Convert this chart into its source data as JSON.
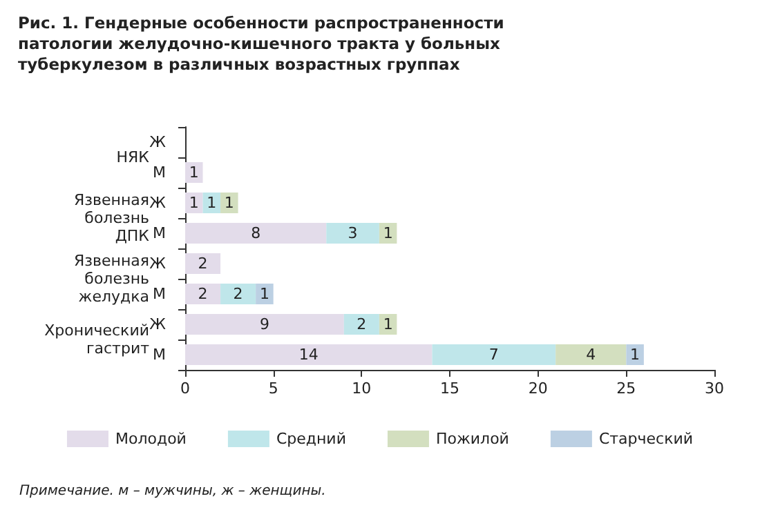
{
  "chart_data": {
    "type": "bar",
    "orientation": "horizontal",
    "stacked": true,
    "title": "Рис. 1. Гендерные особенности распространенности патологии желудочно-кишечного тракта у больных туберкулезом в различных возрастных группах",
    "categories": [
      "Ж",
      "М",
      "Ж",
      "М",
      "Ж",
      "М",
      "Ж",
      "М"
    ],
    "series": [
      {
        "name": "Молодой",
        "color": "#e3dcea",
        "values": [
          null,
          1,
          1,
          8,
          2,
          2,
          9,
          14
        ]
      },
      {
        "name": "Средний",
        "color": "#bfe6ea",
        "values": [
          null,
          null,
          1,
          3,
          null,
          2,
          2,
          7
        ]
      },
      {
        "name": "Пожилой",
        "color": "#d3dfbf",
        "values": [
          null,
          null,
          1,
          1,
          null,
          null,
          1,
          4
        ]
      },
      {
        "name": "Старческий",
        "color": "#bcd0e3",
        "values": [
          null,
          null,
          null,
          null,
          null,
          1,
          null,
          1
        ]
      }
    ],
    "xlim": [
      0,
      30
    ],
    "xticks": [
      0,
      5,
      10,
      15,
      20,
      25,
      30
    ],
    "data_labels": true,
    "grid": false,
    "legend": "bottom",
    "annotations": [
      "НЯК",
      "Язвенная\nболезнь\nДПК",
      "Язвенная\nболезнь\nжелудка",
      "Хронический\nгастрит",
      "Примечание. м – мужчины, ж – женщины."
    ]
  }
}
